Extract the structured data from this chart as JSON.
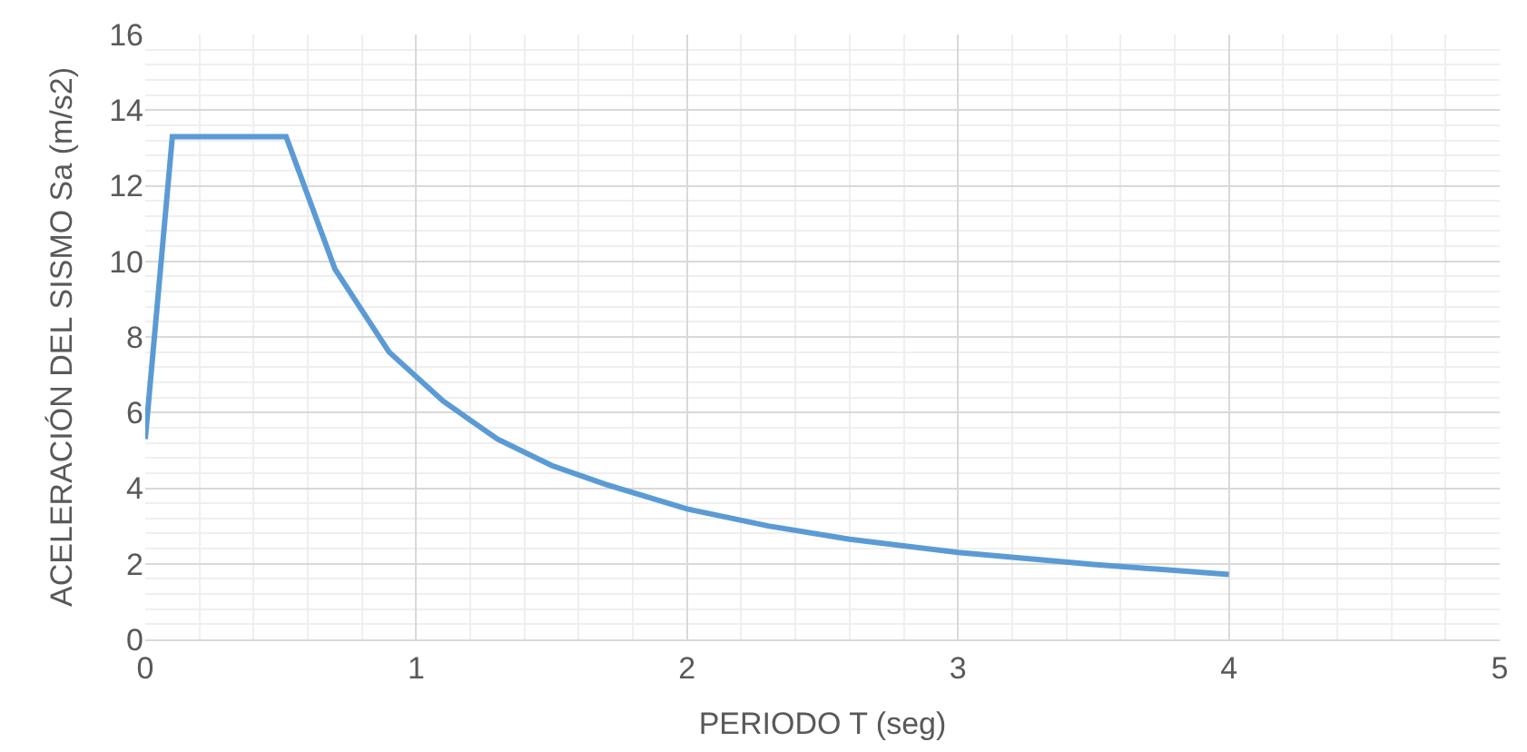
{
  "chart_data": {
    "type": "line",
    "xlabel": "PERIODO T (seg)",
    "ylabel": "ACELERACIÓN DEL SISMO Sa (m/s2)",
    "x": [
      0,
      0.1,
      0.52,
      0.7,
      0.9,
      1.1,
      1.3,
      1.5,
      1.7,
      2.0,
      2.3,
      2.6,
      3.0,
      3.5,
      4.0
    ],
    "series": [
      {
        "color": "#5b9bd5",
        "values": [
          5.3,
          13.3,
          13.3,
          9.8,
          7.6,
          6.3,
          5.3,
          4.6,
          4.1,
          3.45,
          3.0,
          2.65,
          2.3,
          1.98,
          1.72
        ]
      }
    ],
    "xlim": [
      0,
      5
    ],
    "xticks": [
      0,
      1,
      2,
      3,
      4,
      5
    ],
    "ylim": [
      0,
      16
    ],
    "yticks": [
      0,
      2,
      4,
      6,
      8,
      10,
      12,
      14,
      16
    ],
    "grid": true,
    "legend": false,
    "marker": "none",
    "line_style": "solid"
  }
}
